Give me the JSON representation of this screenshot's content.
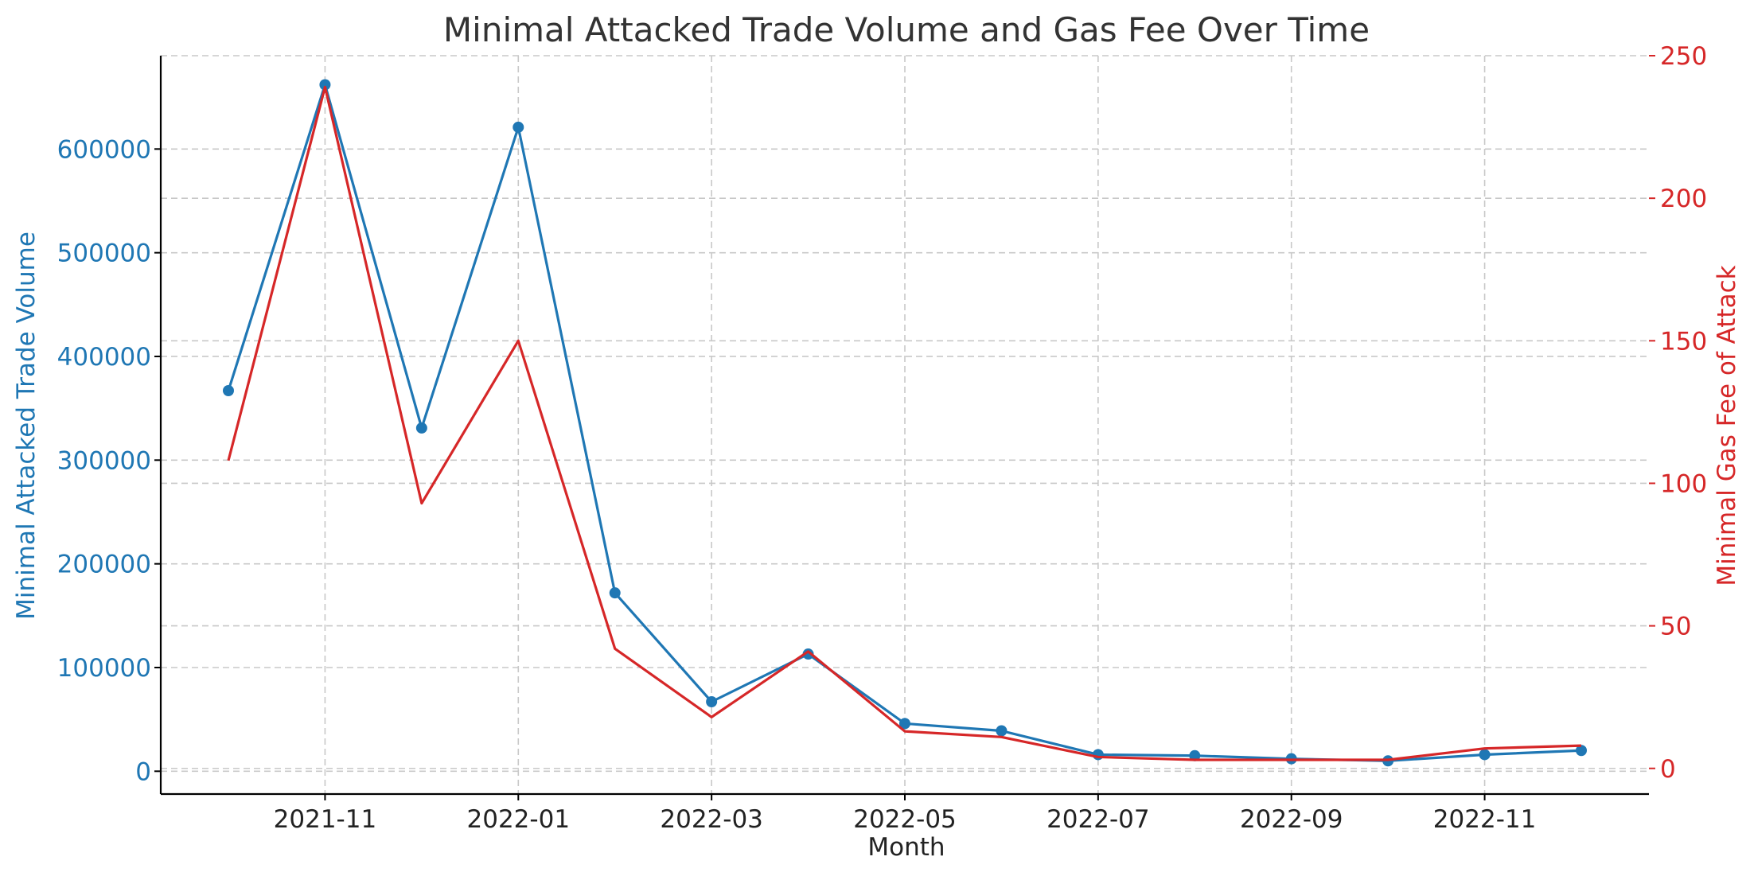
{
  "chart_data": {
    "type": "line",
    "title": "Minimal Attacked Trade Volume and Gas Fee Over Time",
    "xlabel": "Month",
    "x": [
      "2021-10",
      "2021-11",
      "2021-12",
      "2022-01",
      "2022-02",
      "2022-03",
      "2022-04",
      "2022-05",
      "2022-06",
      "2022-07",
      "2022-08",
      "2022-09",
      "2022-10",
      "2022-11",
      "2022-12"
    ],
    "x_ticks": [
      "2021-11",
      "2022-01",
      "2022-03",
      "2022-05",
      "2022-07",
      "2022-09",
      "2022-11"
    ],
    "series": [
      {
        "name": "Minimal Attacked Trade Volume",
        "axis": "left",
        "color": "#1f77b4",
        "marker": "circle",
        "values": [
          367000,
          662000,
          331000,
          621000,
          172000,
          67000,
          113000,
          46000,
          39000,
          16000,
          15000,
          12000,
          10000,
          16000,
          20000
        ]
      },
      {
        "name": "Minimal Gas Fee of Attack",
        "axis": "right",
        "color": "#d62728",
        "marker": "none",
        "values": [
          108,
          239,
          93,
          150,
          42,
          18,
          41,
          13,
          11,
          4,
          3,
          3,
          3,
          7,
          8
        ]
      }
    ],
    "y_left": {
      "label": "Minimal Attacked Trade Volume",
      "ticks": [
        0,
        100000,
        200000,
        300000,
        400000,
        500000,
        600000
      ],
      "ylim": [
        -22000,
        690000
      ],
      "color": "#1f77b4"
    },
    "y_right": {
      "label": "Minimal Gas Fee of Attack",
      "ticks": [
        0,
        50,
        100,
        150,
        200,
        250
      ],
      "ylim": [
        -9,
        250
      ],
      "color": "#d62728"
    },
    "grid": true
  }
}
